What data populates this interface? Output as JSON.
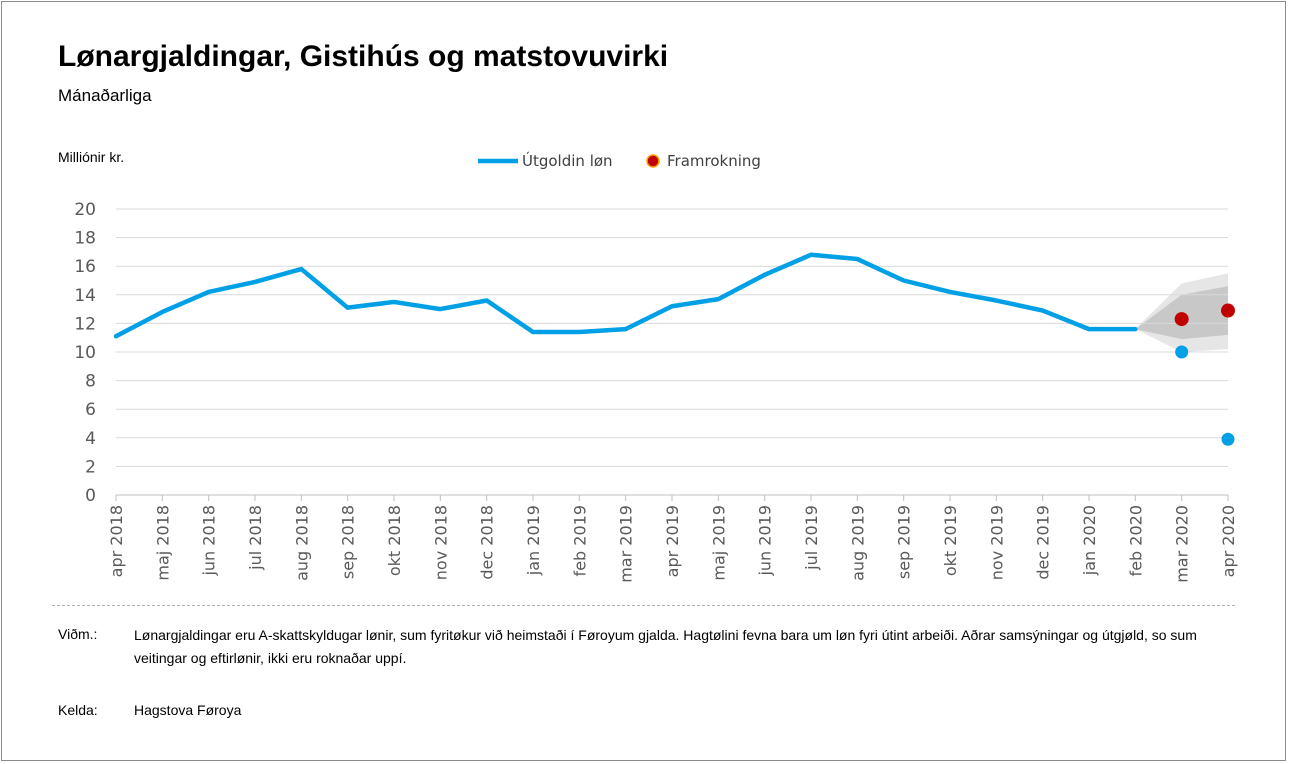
{
  "header": {
    "title": "Lønargjaldingar, Gistihús og matstovuvirki",
    "subtitle": "Mánaðarliga"
  },
  "footer": {
    "note_label": "Viðm.:",
    "note_text": "Lønargjaldingar eru A-skattskyldugar lønir, sum fyritøkur við heimstaði í Føroyum gjalda. Hagtølini fevna bara um løn fyri útint arbeiði. Aðrar samsýningar og útgjøld, so sum veitingar og eftirlønir, ikki eru roknaðar uppí.",
    "source_label": "Kelda:",
    "source_text": "Hagstova Føroya"
  },
  "colors": {
    "actual": "#00a0e6",
    "forecast": "#c00000",
    "band_outer": "#e6e6e6",
    "band_inner": "#c8c8c8",
    "grid": "#d9d9d9"
  },
  "chart_data": {
    "type": "line",
    "title": "Lønargjaldingar, Gistihús og matstovuvirki",
    "subtitle": "Mánaðarliga",
    "ylabel": "Milliónir kr.",
    "xlabel": "",
    "ylim": [
      0,
      20
    ],
    "yticks": [
      0,
      2,
      4,
      6,
      8,
      10,
      12,
      14,
      16,
      18,
      20
    ],
    "grid": true,
    "legend_position": "top-center",
    "categories": [
      "apr 2018",
      "maj 2018",
      "jun 2018",
      "jul 2018",
      "aug 2018",
      "sep 2018",
      "okt 2018",
      "nov 2018",
      "dec 2018",
      "jan 2019",
      "feb 2019",
      "mar 2019",
      "apr 2019",
      "maj 2019",
      "jun 2019",
      "jul 2019",
      "aug 2019",
      "sep 2019",
      "okt 2019",
      "nov 2019",
      "dec 2019",
      "jan 2020",
      "feb 2020",
      "mar 2020",
      "apr 2020"
    ],
    "series": [
      {
        "name": "Útgoldin løn",
        "kind": "line",
        "values": [
          11.1,
          12.8,
          14.2,
          14.9,
          15.8,
          13.1,
          13.5,
          13.0,
          13.6,
          11.4,
          11.4,
          11.6,
          13.2,
          13.7,
          15.4,
          16.8,
          16.5,
          15.0,
          14.2,
          13.6,
          12.9,
          11.6,
          11.6,
          10.0,
          3.9
        ]
      },
      {
        "name": "Framrokning",
        "kind": "marker",
        "values": [
          null,
          null,
          null,
          null,
          null,
          null,
          null,
          null,
          null,
          null,
          null,
          null,
          null,
          null,
          null,
          null,
          null,
          null,
          null,
          null,
          null,
          null,
          null,
          12.3,
          12.9
        ]
      }
    ],
    "forecast_band": {
      "categories": [
        "feb 2020",
        "mar 2020",
        "apr 2020"
      ],
      "outer_low": [
        11.6,
        10.0,
        10.2
      ],
      "outer_high": [
        11.6,
        14.8,
        15.5
      ],
      "inner_low": [
        11.6,
        10.9,
        11.2
      ],
      "inner_high": [
        11.6,
        14.0,
        14.6
      ]
    }
  }
}
